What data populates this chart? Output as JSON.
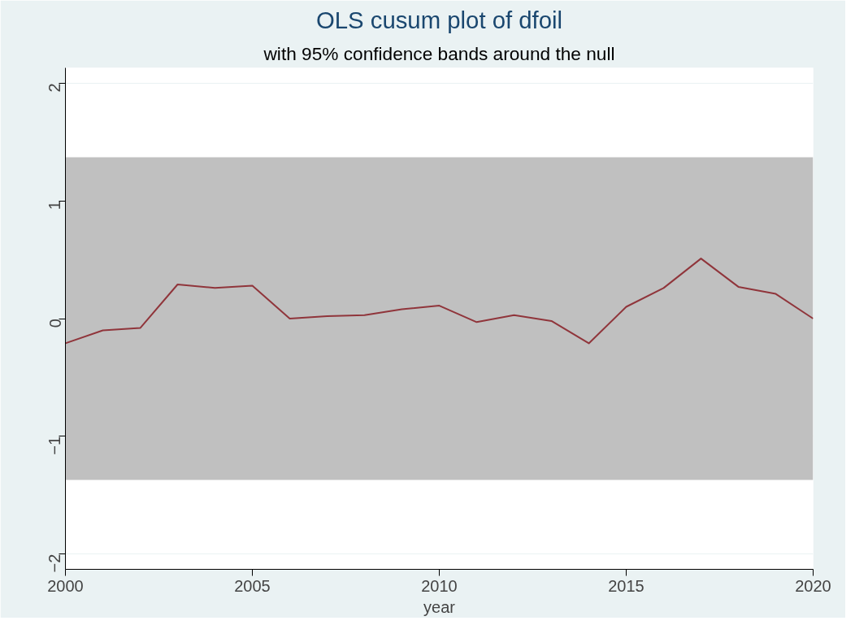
{
  "chart_data": {
    "type": "line",
    "title": "OLS cusum plot of dfoil",
    "subtitle": "with 95% confidence bands around the null",
    "xlabel": "year",
    "x": [
      2000,
      2001,
      2002,
      2003,
      2004,
      2005,
      2006,
      2007,
      2008,
      2009,
      2010,
      2011,
      2012,
      2013,
      2014,
      2015,
      2016,
      2017,
      2018,
      2019,
      2020
    ],
    "series": [
      {
        "color": "#90353b",
        "values": [
          -0.21,
          -0.1,
          -0.08,
          0.29,
          0.26,
          0.28,
          0.0,
          0.02,
          0.03,
          0.08,
          0.11,
          -0.03,
          0.03,
          -0.02,
          -0.21,
          0.1,
          0.26,
          0.51,
          0.27,
          0.21,
          0.0
        ]
      }
    ],
    "xlim": [
      2000,
      2020
    ],
    "ylim": [
      -2.13,
      2.13
    ],
    "xticks": [
      2000,
      2005,
      2010,
      2015,
      2020
    ],
    "yticks": [
      -2,
      -1,
      0,
      1,
      2
    ],
    "bands": [
      {
        "axis": "y",
        "from": -1.37,
        "to": 1.37,
        "color": "#c0c0c0"
      }
    ],
    "grid": "y",
    "marker": "none",
    "line_style": "solid"
  }
}
